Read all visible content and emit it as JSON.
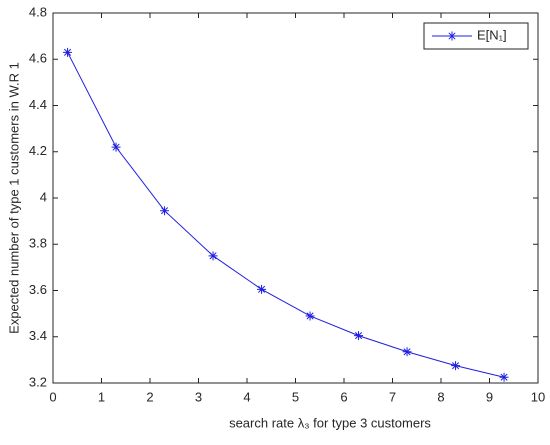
{
  "chart_data": {
    "type": "line",
    "x_label": "search rate λ₃ for type 3 customers",
    "y_label": "Expected number of  type 1 customers in W.R 1",
    "x": [
      0.3,
      1.3,
      2.3,
      3.3,
      4.3,
      5.3,
      6.3,
      7.3,
      8.3,
      9.3
    ],
    "series": [
      {
        "name": "E[N₁]",
        "color": "#1f1fe0",
        "marker": "asterisk",
        "values": [
          4.63,
          4.22,
          3.945,
          3.75,
          3.605,
          3.49,
          3.405,
          3.335,
          3.275,
          3.225
        ]
      }
    ],
    "xlim": [
      0,
      10
    ],
    "xticks": [
      0,
      1,
      2,
      3,
      4,
      5,
      6,
      7,
      8,
      9,
      10
    ],
    "ylim": [
      3.2,
      4.8
    ],
    "yticks": [
      3.2,
      3.4,
      3.6,
      3.8,
      4,
      4.2,
      4.4,
      4.6,
      4.8
    ],
    "grid": false,
    "legend": "top-right"
  }
}
